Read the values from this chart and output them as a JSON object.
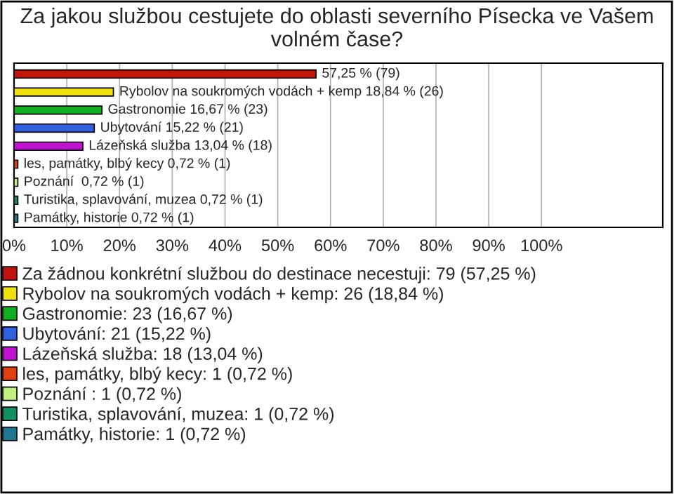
{
  "chart_data": {
    "type": "bar",
    "orientation": "horizontal",
    "title": "Za jakou službou cestujete do oblasti severního Písecka ve Vašem\nvolném čase?",
    "categories": [
      null,
      null,
      null,
      null,
      null,
      null,
      null,
      null,
      null
    ],
    "series": [
      {
        "name": "Za žádnou konkrétní službou do destinace necestuji: 79 (57,25 %)",
        "color": "#c0140c",
        "values": [
          57.25,
          null,
          null,
          null,
          null,
          null,
          null,
          null,
          null
        ],
        "value_labels": [
          "57,25 % (79)",
          null,
          null,
          null,
          null,
          null,
          null,
          null,
          null
        ]
      },
      {
        "name": "Rybolov na soukromých vodách + kemp: 26 (18,84 %)",
        "color": "#f0e010",
        "values": [
          null,
          18.84,
          null,
          null,
          null,
          null,
          null,
          null,
          null
        ],
        "value_labels": [
          null,
          "Rybolov na soukromých vodách + kemp 18,84 % (26)",
          null,
          null,
          null,
          null,
          null,
          null,
          null
        ]
      },
      {
        "name": "Gastronomie: 23 (16,67 %)",
        "color": "#10b020",
        "values": [
          null,
          null,
          16.67,
          null,
          null,
          null,
          null,
          null,
          null
        ],
        "value_labels": [
          null,
          null,
          "Gastronomie 16,67 % (23)",
          null,
          null,
          null,
          null,
          null,
          null
        ]
      },
      {
        "name": "Ubytování: 21 (15,22 %)",
        "color": "#3060e0",
        "values": [
          null,
          null,
          null,
          15.22,
          null,
          null,
          null,
          null,
          null
        ],
        "value_labels": [
          null,
          null,
          null,
          "Ubytování 15,22 % (21)",
          null,
          null,
          null,
          null,
          null
        ]
      },
      {
        "name": "Lázeňská služba: 18 (13,04 %)",
        "color": "#c010d0",
        "values": [
          null,
          null,
          null,
          null,
          13.04,
          null,
          null,
          null,
          null
        ],
        "value_labels": [
          null,
          null,
          null,
          null,
          "Lázeňská služba 13,04 % (18)",
          null,
          null,
          null,
          null
        ]
      },
      {
        "name": "les, památky, blbý kecy: 1 (0,72 %)",
        "color": "#e04010",
        "values": [
          null,
          null,
          null,
          null,
          null,
          0.72,
          null,
          null,
          null
        ],
        "value_labels": [
          null,
          null,
          null,
          null,
          null,
          "les, památky, blbý kecy 0,72 % (1)",
          null,
          null,
          null
        ]
      },
      {
        "name": "Poznání : 1 (0,72 %)",
        "color": "#c0f080",
        "values": [
          null,
          null,
          null,
          null,
          null,
          null,
          0.72,
          null,
          null
        ],
        "value_labels": [
          null,
          null,
          null,
          null,
          null,
          null,
          "Poznání  0,72 % (1)",
          null,
          null
        ]
      },
      {
        "name": "Turistika, splavování, muzea: 1 (0,72 %)",
        "color": "#109060",
        "values": [
          null,
          null,
          null,
          null,
          null,
          null,
          null,
          0.72,
          null
        ],
        "value_labels": [
          null,
          null,
          null,
          null,
          null,
          null,
          null,
          "Turistika, splavování, muzea 0,72 % (1)",
          null
        ]
      },
      {
        "name": "Památky, historie: 1 (0,72 %)",
        "color": "#207890",
        "values": [
          null,
          null,
          null,
          null,
          null,
          null,
          null,
          null,
          0.72
        ],
        "value_labels": [
          null,
          null,
          null,
          null,
          null,
          null,
          null,
          null,
          "Památky, historie 0,72 % (1)"
        ]
      }
    ],
    "xlim": [
      0,
      123
    ],
    "xticks": [
      {
        "value": 0,
        "label": "0%"
      },
      {
        "value": 10,
        "label": "10%"
      },
      {
        "value": 20,
        "label": "20%"
      },
      {
        "value": 30,
        "label": "30%"
      },
      {
        "value": 40,
        "label": "40%"
      },
      {
        "value": 50,
        "label": "50%"
      },
      {
        "value": 60,
        "label": "60%"
      },
      {
        "value": 70,
        "label": "70%"
      },
      {
        "value": 80,
        "label": "80%"
      },
      {
        "value": 90,
        "label": "90%"
      },
      {
        "value": 100,
        "label": "100%"
      }
    ],
    "grid": "x",
    "legend": "bottom",
    "tick_labels": "x"
  }
}
